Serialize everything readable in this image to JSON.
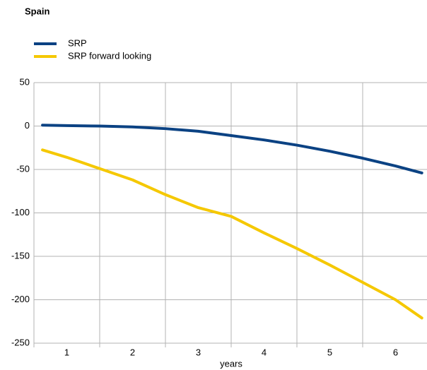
{
  "chart_data": {
    "type": "line",
    "title": "Spain",
    "x_label": "years",
    "x": [
      0.63,
      1,
      1.5,
      2,
      2.5,
      3,
      3.5,
      4,
      4.5,
      5,
      5.5,
      6,
      6.4
    ],
    "series": [
      {
        "name": "SRP",
        "color": "#0b4283",
        "values": [
          1,
          0.5,
          0,
          -1,
          -3,
          -6,
          -11,
          -16,
          -22,
          -29,
          -37,
          -46,
          -54
        ]
      },
      {
        "name": "SRP forward looking",
        "color": "#f5c800",
        "values": [
          -27.5,
          -36,
          -49,
          -62,
          -79,
          -94,
          -104,
          -123,
          -141,
          -160,
          -180,
          -200,
          -221
        ]
      }
    ],
    "xlim": [
      0.5,
      6.5
    ],
    "xticks": [
      1,
      2,
      3,
      4,
      5,
      6
    ],
    "ylim": [
      -250,
      50
    ],
    "yticks": [
      -250,
      -200,
      -150,
      -100,
      -50,
      0,
      50
    ],
    "grid": true,
    "legend": "top-left"
  }
}
